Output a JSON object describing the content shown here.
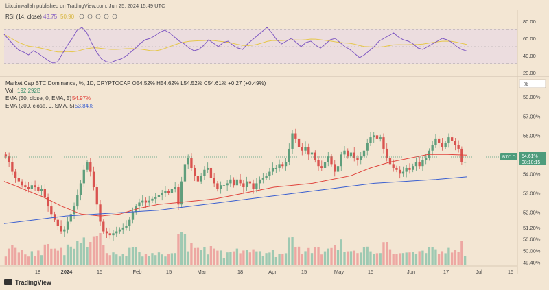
{
  "header": {
    "publisher": "bitcoinwallah published on TradingView.com, Jun 25, 2024 15:49 UTC"
  },
  "rsi": {
    "label": "RSI (14, close)",
    "value": "43.75",
    "value2": "50.90",
    "value_color": "#7e57c2",
    "value2_color": "#e6c74a",
    "ticks": [
      "80.00",
      "60.00",
      "40.00",
      "20.00"
    ]
  },
  "main": {
    "symbol_line": "Market Cap BTC Dominance, %, 1D, CRYPTOCAP  O54.52%  H54.62%  L54.52%  C54.61%  +0.27 (+0.49%)",
    "vol_label": "Vol",
    "vol_value": "192.292B",
    "ema50_label": "EMA (50, close, 0, EMA, 5)",
    "ema50_value": "54.97%",
    "ema200_label": "EMA (200, close, 0, SMA, 5)",
    "ema200_value": "53.84%",
    "scale_button": "%",
    "price_tag": {
      "symbol": "BTC.D",
      "value": "54.61%",
      "countdown": "08:10:15"
    }
  },
  "x_axis": [
    "18",
    "2024",
    "15",
    "Feb",
    "15",
    "Mar",
    "18",
    "Apr",
    "15",
    "May",
    "15",
    "Jun",
    "17",
    "Jul",
    "15"
  ],
  "footer": {
    "brand": "TradingView"
  },
  "colors": {
    "up": "#5f9e7c",
    "down": "#d9534f",
    "ema50": "#e0453e",
    "ema200": "#3a5fd0",
    "rsi": "#7e57c2",
    "rsi_ma": "#e6c74a",
    "background": "#f3e6d3"
  },
  "chart_data": {
    "type": "candlestick",
    "title": "Market Cap BTC Dominance, %, 1D, CRYPTOCAP",
    "y_ticks": [
      "58.00%",
      "57.00%",
      "56.00%",
      "55.00%",
      "54.00%",
      "53.00%",
      "52.00%",
      "51.20%",
      "50.60%",
      "50.00%",
      "49.40%"
    ],
    "ylim": [
      49.2,
      58.4
    ],
    "x_labels": [
      "18",
      "2024",
      "15",
      "Feb",
      "15",
      "Mar",
      "18",
      "Apr",
      "15",
      "May",
      "15",
      "Jun",
      "17",
      "Jul",
      "15"
    ],
    "closes": [
      54.9,
      54.6,
      54.1,
      53.8,
      53.6,
      53.4,
      53.3,
      53.2,
      53.4,
      53.3,
      53.1,
      53.2,
      52.8,
      52.3,
      51.9,
      51.6,
      51.3,
      51.0,
      51.1,
      51.5,
      51.9,
      52.3,
      52.9,
      53.5,
      54.2,
      54.6,
      54.1,
      53.3,
      52.4,
      51.5,
      51.0,
      50.9,
      50.8,
      50.9,
      51.0,
      51.1,
      51.2,
      51.3,
      51.6,
      52.0,
      52.3,
      52.5,
      52.6,
      52.5,
      52.6,
      52.7,
      52.8,
      52.9,
      53.0,
      53.1,
      53.0,
      53.2,
      53.3,
      52.4,
      53.6,
      54.5,
      54.8,
      54.3,
      53.9,
      53.6,
      53.9,
      54.2,
      54.3,
      53.8,
      53.5,
      53.2,
      53.4,
      53.4,
      53.5,
      53.7,
      53.4,
      53.7,
      53.5,
      53.3,
      53.6,
      53.5,
      53.2,
      53.5,
      53.7,
      53.8,
      53.9,
      54.1,
      54.3,
      54.3,
      54.5,
      54.4,
      54.6,
      55.3,
      56.1,
      55.8,
      55.4,
      55.2,
      55.4,
      55.0,
      55.1,
      54.7,
      54.4,
      54.3,
      54.6,
      54.9,
      54.5,
      54.1,
      54.4,
      55.0,
      55.2,
      54.9,
      55.1,
      54.8,
      54.7,
      54.9,
      55.2,
      55.6,
      55.9,
      56.0,
      55.8,
      55.9,
      55.3,
      54.8,
      54.5,
      54.3,
      54.2,
      54.0,
      54.1,
      54.3,
      54.2,
      54.4,
      54.6,
      54.4,
      54.7,
      54.8,
      55.2,
      55.5,
      55.8,
      55.6,
      55.4,
      55.6,
      55.9,
      55.7,
      55.5,
      55.3,
      54.6,
      54.61
    ],
    "ema50": [
      53.6,
      53.2,
      52.8,
      52.3,
      51.9,
      51.8,
      51.9,
      52.2,
      52.4,
      52.5,
      52.6,
      52.7,
      52.9,
      53.1,
      53.3,
      53.4,
      53.5,
      53.7,
      53.9,
      54.3,
      54.6,
      54.8,
      55.0,
      55.0,
      54.97
    ],
    "ema200": [
      51.4,
      51.6,
      51.8,
      51.9,
      52.0,
      52.1,
      52.3,
      52.5,
      52.7,
      52.9,
      53.1,
      53.3,
      53.5,
      53.6,
      53.7,
      53.84
    ],
    "rsi": [
      68,
      60,
      52,
      45,
      42,
      38,
      44,
      40,
      35,
      30,
      26,
      28,
      40,
      52,
      62,
      74,
      78,
      70,
      55,
      42,
      32,
      28,
      27,
      30,
      32,
      36,
      42,
      48,
      55,
      60,
      62,
      66,
      71,
      74,
      70,
      64,
      58,
      54,
      48,
      44,
      46,
      52,
      60,
      55,
      50,
      56,
      58,
      52,
      48,
      46,
      54,
      60,
      66,
      72,
      78,
      70,
      60,
      54,
      58,
      62,
      56,
      50,
      56,
      58,
      52,
      48,
      54,
      60,
      62,
      56,
      50,
      46,
      40,
      34,
      38,
      44,
      50,
      58,
      62,
      66,
      70,
      64,
      60,
      58,
      54,
      48,
      46,
      50,
      54,
      58,
      62,
      60,
      56,
      50,
      46,
      43.75
    ]
  }
}
